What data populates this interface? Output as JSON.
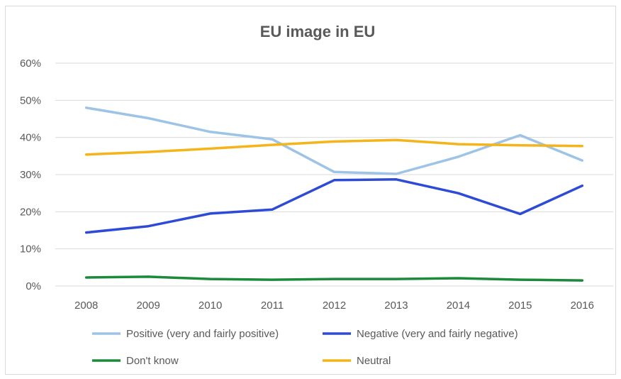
{
  "chart_data": {
    "type": "line",
    "title": "EU image in EU",
    "xlabel": "",
    "ylabel": "",
    "categories": [
      "2008",
      "2009",
      "2010",
      "2011",
      "2012",
      "2013",
      "2014",
      "2015",
      "2016"
    ],
    "ylim": [
      0,
      60
    ],
    "yticks": [
      0,
      10,
      20,
      30,
      40,
      50,
      60
    ],
    "ytick_labels": [
      "0%",
      "10%",
      "20%",
      "30%",
      "40%",
      "50%",
      "60%"
    ],
    "grid": true,
    "legend_position": "bottom",
    "series": [
      {
        "name": "Positive (very and fairly positive)",
        "color": "#9dc3e6",
        "values": [
          48,
          45.2,
          41.5,
          39.5,
          30.7,
          30.2,
          34.8,
          40.6,
          33.8
        ]
      },
      {
        "name": "Negative (very and fairly negative)",
        "color": "#2e4bd6",
        "values": [
          14.4,
          16.1,
          19.5,
          20.6,
          28.5,
          28.7,
          25,
          19.4,
          27
        ]
      },
      {
        "name": "Don't know",
        "color": "#1b8a3a",
        "values": [
          2.3,
          2.5,
          1.9,
          1.7,
          1.9,
          1.9,
          2.1,
          1.7,
          1.5
        ]
      },
      {
        "name": "Neutral",
        "color": "#f4b41a",
        "values": [
          35.4,
          36.1,
          37,
          38,
          38.9,
          39.3,
          38.2,
          37.9,
          37.7
        ]
      }
    ]
  }
}
